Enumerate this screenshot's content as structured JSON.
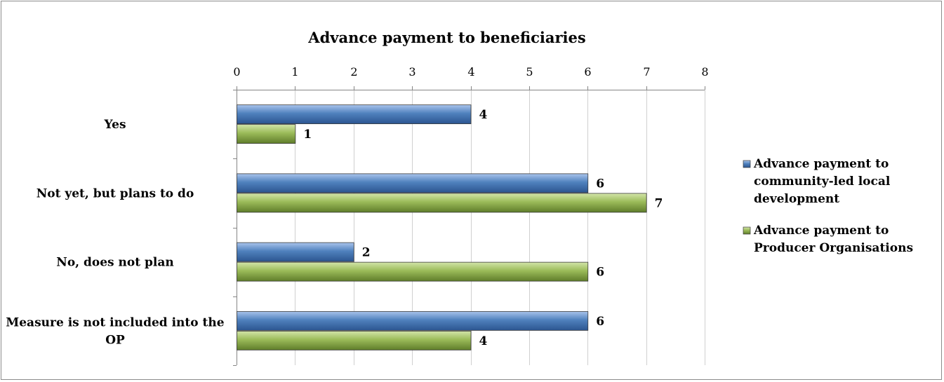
{
  "chart_data": {
    "type": "bar",
    "orientation": "horizontal",
    "title": "Advance payment to beneficiaries",
    "xlabel": "",
    "ylabel": "",
    "xlim": [
      0,
      8
    ],
    "ticks": [
      "0",
      "1",
      "2",
      "3",
      "4",
      "5",
      "6",
      "7",
      "8"
    ],
    "tick_position": "top",
    "grid": true,
    "legend_position": "right",
    "categories": [
      [
        "Yes"
      ],
      [
        "Not yet, but plans to do"
      ],
      [
        "No, does not plan"
      ],
      [
        "Measure is not included into the",
        "OP"
      ]
    ],
    "series": [
      {
        "name": [
          "Advance payment to",
          "community-led local",
          "development"
        ],
        "color": "#4f81bd",
        "values": [
          4,
          6,
          2,
          6
        ]
      },
      {
        "name": [
          "Advance payment to",
          "Producer Organisations"
        ],
        "color": "#9bbb59",
        "values": [
          1,
          7,
          6,
          4
        ]
      }
    ]
  }
}
